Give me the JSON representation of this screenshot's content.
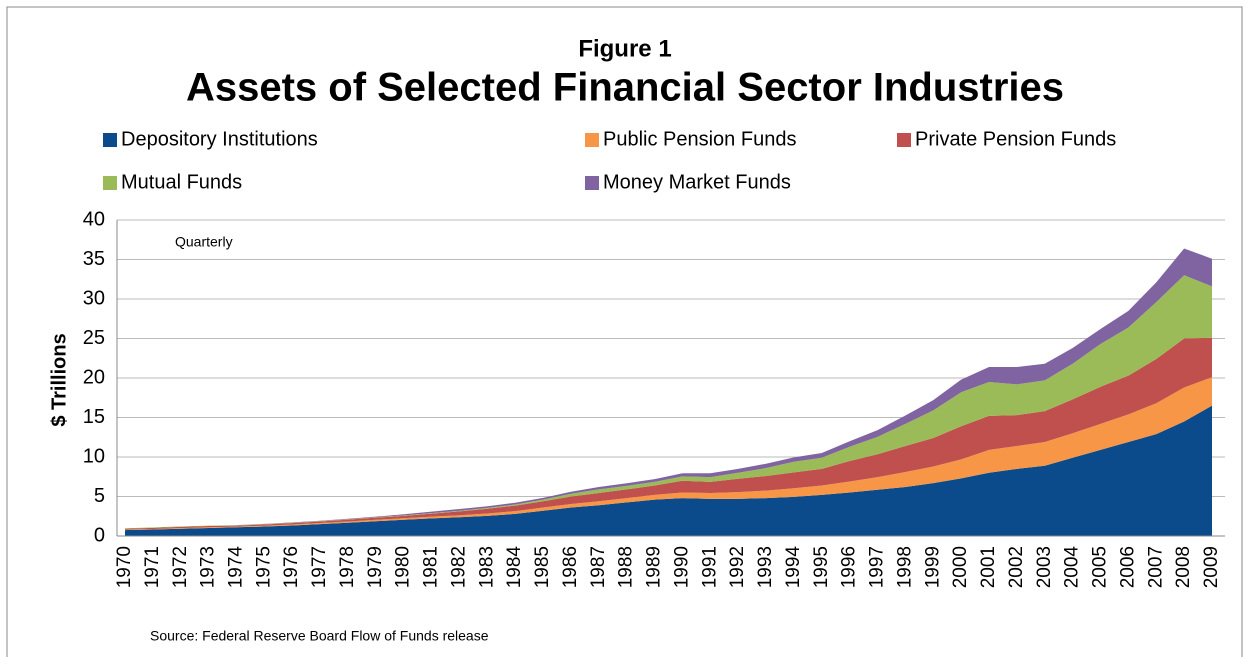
{
  "chart_data": {
    "type": "stacked_area",
    "figure_label": "Figure 1",
    "title": "Assets of Selected Financial Sector Industries",
    "y_label": "$ Trillions",
    "annotation": "Quarterly",
    "source": "Source: Federal Reserve Board Flow of Funds release",
    "categories": [
      "1970",
      "1971",
      "1972",
      "1973",
      "1974",
      "1975",
      "1976",
      "1977",
      "1978",
      "1979",
      "1980",
      "1981",
      "1982",
      "1983",
      "1984",
      "1985",
      "1986",
      "1987",
      "1988",
      "1989",
      "1990",
      "1991",
      "1992",
      "1993",
      "1994",
      "1995",
      "1996",
      "1997",
      "1998",
      "1999",
      "2000",
      "2001",
      "2002",
      "2003",
      "2004",
      "2005",
      "2006",
      "2007",
      "2008",
      "2009"
    ],
    "series": [
      {
        "name": "Depository Institutions",
        "color": "#0b4b8b",
        "values": [
          0.75,
          0.82,
          0.92,
          1.02,
          1.1,
          1.2,
          1.33,
          1.5,
          1.68,
          1.87,
          2.05,
          2.23,
          2.38,
          2.55,
          2.8,
          3.2,
          3.6,
          3.9,
          4.25,
          4.6,
          4.8,
          4.7,
          4.7,
          4.8,
          4.95,
          5.2,
          5.5,
          5.85,
          6.2,
          6.7,
          7.3,
          8.0,
          8.5,
          8.9,
          9.9,
          10.9,
          11.9,
          12.9,
          14.5,
          16.5
        ]
      },
      {
        "name": "Public Pension Funds",
        "color": "#f79646",
        "values": [
          0.06,
          0.07,
          0.08,
          0.09,
          0.09,
          0.1,
          0.12,
          0.14,
          0.16,
          0.18,
          0.2,
          0.22,
          0.25,
          0.3,
          0.35,
          0.4,
          0.45,
          0.5,
          0.55,
          0.6,
          0.7,
          0.75,
          0.85,
          0.95,
          1.1,
          1.2,
          1.4,
          1.6,
          1.9,
          2.1,
          2.4,
          2.9,
          2.9,
          3.0,
          3.1,
          3.3,
          3.5,
          3.9,
          4.3,
          3.6
        ]
      },
      {
        "name": "Private Pension Funds",
        "color": "#c0504d",
        "values": [
          0.12,
          0.14,
          0.16,
          0.15,
          0.13,
          0.16,
          0.18,
          0.2,
          0.23,
          0.27,
          0.3,
          0.38,
          0.48,
          0.6,
          0.7,
          0.8,
          0.95,
          1.05,
          1.1,
          1.2,
          1.5,
          1.4,
          1.7,
          1.85,
          2.0,
          2.1,
          2.6,
          2.9,
          3.3,
          3.6,
          4.2,
          4.3,
          3.9,
          3.9,
          4.3,
          4.7,
          4.9,
          5.6,
          6.2,
          5.0
        ]
      },
      {
        "name": "Mutual Funds",
        "color": "#9bbb59",
        "values": [
          0.05,
          0.06,
          0.06,
          0.05,
          0.04,
          0.04,
          0.05,
          0.05,
          0.05,
          0.05,
          0.06,
          0.06,
          0.08,
          0.11,
          0.14,
          0.2,
          0.35,
          0.45,
          0.45,
          0.45,
          0.55,
          0.6,
          0.75,
          1.0,
          1.35,
          1.4,
          1.8,
          2.2,
          2.8,
          3.5,
          4.3,
          4.3,
          3.9,
          3.9,
          4.5,
          5.4,
          6.1,
          7.2,
          8.0,
          6.5
        ]
      },
      {
        "name": "Money Market Funds",
        "color": "#8064a2",
        "values": [
          0,
          0,
          0,
          0,
          0.02,
          0.04,
          0.04,
          0.04,
          0.06,
          0.08,
          0.15,
          0.2,
          0.22,
          0.21,
          0.22,
          0.23,
          0.25,
          0.3,
          0.32,
          0.35,
          0.4,
          0.5,
          0.5,
          0.55,
          0.55,
          0.6,
          0.7,
          0.85,
          1.05,
          1.3,
          1.6,
          1.9,
          2.2,
          2.1,
          2.0,
          1.9,
          2.1,
          2.5,
          3.4,
          3.5
        ]
      }
    ],
    "ylim": [
      0,
      40
    ],
    "yticks": [
      0,
      5,
      10,
      15,
      20,
      25,
      30,
      35,
      40
    ],
    "grid": true
  }
}
